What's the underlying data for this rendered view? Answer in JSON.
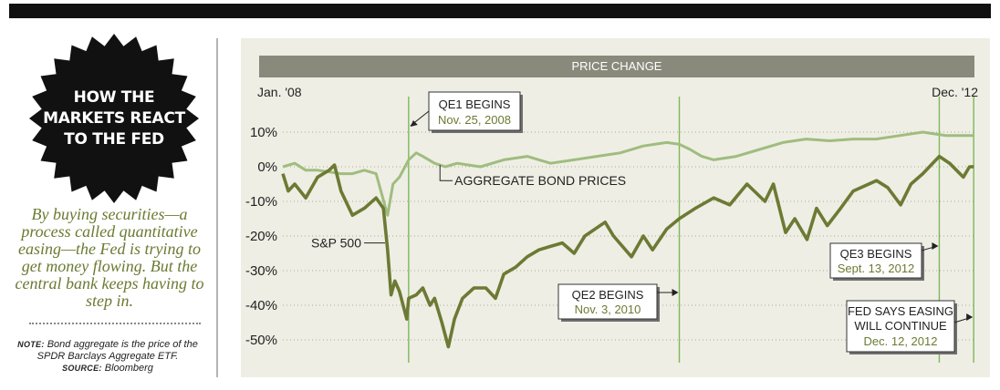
{
  "badge": {
    "lines": [
      "HOW THE",
      "MARKETS REACT",
      "TO THE FED"
    ]
  },
  "lede": "By buying securities—a process called quantitative easing—the Fed is trying to get money flowing. But the central bank keeps having to step in.",
  "note": {
    "label": "NOTE:",
    "text": "Bond aggregate is the price of the SPDR Barclays Aggregate ETF.",
    "source_label": "SOURCE:",
    "source": "Bloomberg"
  },
  "chart_data": {
    "type": "line",
    "title": "PRICE CHANGE",
    "x_start_label": "Jan. '08",
    "x_end_label": "Dec. '12",
    "ylim": [
      -55,
      12
    ],
    "y_ticks": [
      10,
      0,
      -10,
      -20,
      -30,
      -40,
      -50
    ],
    "y_tick_labels": [
      "10%",
      "0%",
      "-10%",
      "-20%",
      "-30%",
      "-40%",
      "-50%"
    ],
    "grid": "horizontal dotted",
    "series": [
      {
        "name": "AGGREGATE BOND PRICES",
        "color": "#9fbd7f",
        "points": [
          [
            "2008-01-01",
            0
          ],
          [
            "2008-02-01",
            1
          ],
          [
            "2008-03-01",
            -1
          ],
          [
            "2008-04-01",
            -1
          ],
          [
            "2008-05-01",
            -1.5
          ],
          [
            "2008-06-01",
            -2
          ],
          [
            "2008-07-01",
            -2
          ],
          [
            "2008-08-01",
            -1
          ],
          [
            "2008-09-01",
            -2
          ],
          [
            "2008-10-01",
            -14
          ],
          [
            "2008-10-15",
            -5
          ],
          [
            "2008-11-01",
            -3
          ],
          [
            "2008-11-25",
            2
          ],
          [
            "2008-12-15",
            4
          ],
          [
            "2009-01-01",
            3
          ],
          [
            "2009-02-01",
            1
          ],
          [
            "2009-03-01",
            0
          ],
          [
            "2009-04-01",
            1
          ],
          [
            "2009-06-01",
            0
          ],
          [
            "2009-08-01",
            2
          ],
          [
            "2009-10-01",
            3
          ],
          [
            "2009-12-01",
            1
          ],
          [
            "2010-02-01",
            2
          ],
          [
            "2010-04-01",
            3
          ],
          [
            "2010-06-01",
            4
          ],
          [
            "2010-08-01",
            6
          ],
          [
            "2010-10-01",
            7
          ],
          [
            "2010-11-03",
            6.5
          ],
          [
            "2010-12-01",
            5
          ],
          [
            "2011-01-01",
            3
          ],
          [
            "2011-02-01",
            2
          ],
          [
            "2011-04-01",
            3
          ],
          [
            "2011-06-01",
            5
          ],
          [
            "2011-08-01",
            7
          ],
          [
            "2011-10-01",
            8
          ],
          [
            "2011-12-01",
            7.5
          ],
          [
            "2012-02-01",
            8
          ],
          [
            "2012-04-01",
            8
          ],
          [
            "2012-06-01",
            9
          ],
          [
            "2012-08-01",
            10
          ],
          [
            "2012-10-01",
            9
          ],
          [
            "2012-12-12",
            9
          ]
        ]
      },
      {
        "name": "S&P 500",
        "color": "#6c7a34",
        "points": [
          [
            "2008-01-01",
            -2
          ],
          [
            "2008-01-15",
            -7
          ],
          [
            "2008-02-01",
            -5
          ],
          [
            "2008-03-01",
            -9
          ],
          [
            "2008-04-01",
            -3
          ],
          [
            "2008-05-01",
            -1
          ],
          [
            "2008-05-15",
            0.5
          ],
          [
            "2008-06-01",
            -7
          ],
          [
            "2008-07-01",
            -14
          ],
          [
            "2008-08-01",
            -12
          ],
          [
            "2008-09-01",
            -9
          ],
          [
            "2008-09-20",
            -12
          ],
          [
            "2008-10-01",
            -24
          ],
          [
            "2008-10-10",
            -37
          ],
          [
            "2008-10-20",
            -33
          ],
          [
            "2008-11-01",
            -36
          ],
          [
            "2008-11-20",
            -44
          ],
          [
            "2008-11-25",
            -38
          ],
          [
            "2008-12-15",
            -37
          ],
          [
            "2009-01-01",
            -35
          ],
          [
            "2009-01-20",
            -40
          ],
          [
            "2009-02-01",
            -38
          ],
          [
            "2009-02-20",
            -45
          ],
          [
            "2009-03-09",
            -52
          ],
          [
            "2009-03-25",
            -44
          ],
          [
            "2009-04-15",
            -38
          ],
          [
            "2009-05-15",
            -35
          ],
          [
            "2009-06-15",
            -35
          ],
          [
            "2009-07-10",
            -38
          ],
          [
            "2009-08-01",
            -31
          ],
          [
            "2009-09-01",
            -29
          ],
          [
            "2009-10-01",
            -26
          ],
          [
            "2009-11-01",
            -24
          ],
          [
            "2009-12-01",
            -23
          ],
          [
            "2010-01-01",
            -22
          ],
          [
            "2010-02-01",
            -25
          ],
          [
            "2010-03-01",
            -20
          ],
          [
            "2010-04-23",
            -16
          ],
          [
            "2010-05-15",
            -20
          ],
          [
            "2010-07-01",
            -26
          ],
          [
            "2010-08-01",
            -20
          ],
          [
            "2010-08-25",
            -24
          ],
          [
            "2010-10-01",
            -18
          ],
          [
            "2010-11-03",
            -15
          ],
          [
            "2010-12-15",
            -12
          ],
          [
            "2011-02-01",
            -9
          ],
          [
            "2011-03-15",
            -11
          ],
          [
            "2011-04-29",
            -5
          ],
          [
            "2011-06-15",
            -10
          ],
          [
            "2011-07-07",
            -5
          ],
          [
            "2011-08-08",
            -19
          ],
          [
            "2011-09-01",
            -15
          ],
          [
            "2011-10-03",
            -21
          ],
          [
            "2011-10-28",
            -12
          ],
          [
            "2011-11-25",
            -17
          ],
          [
            "2011-12-30",
            -12
          ],
          [
            "2012-02-01",
            -7
          ],
          [
            "2012-04-02",
            -4
          ],
          [
            "2012-05-01",
            -6
          ],
          [
            "2012-06-04",
            -11
          ],
          [
            "2012-07-01",
            -5
          ],
          [
            "2012-08-01",
            -2
          ],
          [
            "2012-09-13",
            3
          ],
          [
            "2012-10-10",
            1
          ],
          [
            "2012-11-15",
            -3
          ],
          [
            "2012-12-01",
            0
          ],
          [
            "2012-12-12",
            0
          ]
        ]
      }
    ],
    "markers": [
      {
        "date": "2008-11-25",
        "label": "QE1 BEGINS",
        "sublabel": "Nov. 25, 2008"
      },
      {
        "date": "2010-11-03",
        "label": "QE2 BEGINS",
        "sublabel": "Nov. 3, 2010"
      },
      {
        "date": "2012-09-13",
        "label": "QE3 BEGINS",
        "sublabel": "Sept. 13, 2012"
      },
      {
        "date": "2012-12-12",
        "label": "FED SAYS EASING WILL CONTINUE",
        "sublabel": "Dec. 12, 2012"
      }
    ]
  },
  "colors": {
    "bond": "#9fbd7f",
    "sp500": "#6c7a34",
    "marker_line": "#7cb85a",
    "accent_text": "#6b7a32",
    "header_bar": "#8a8a7c",
    "panel_bg": "#efeee4"
  }
}
